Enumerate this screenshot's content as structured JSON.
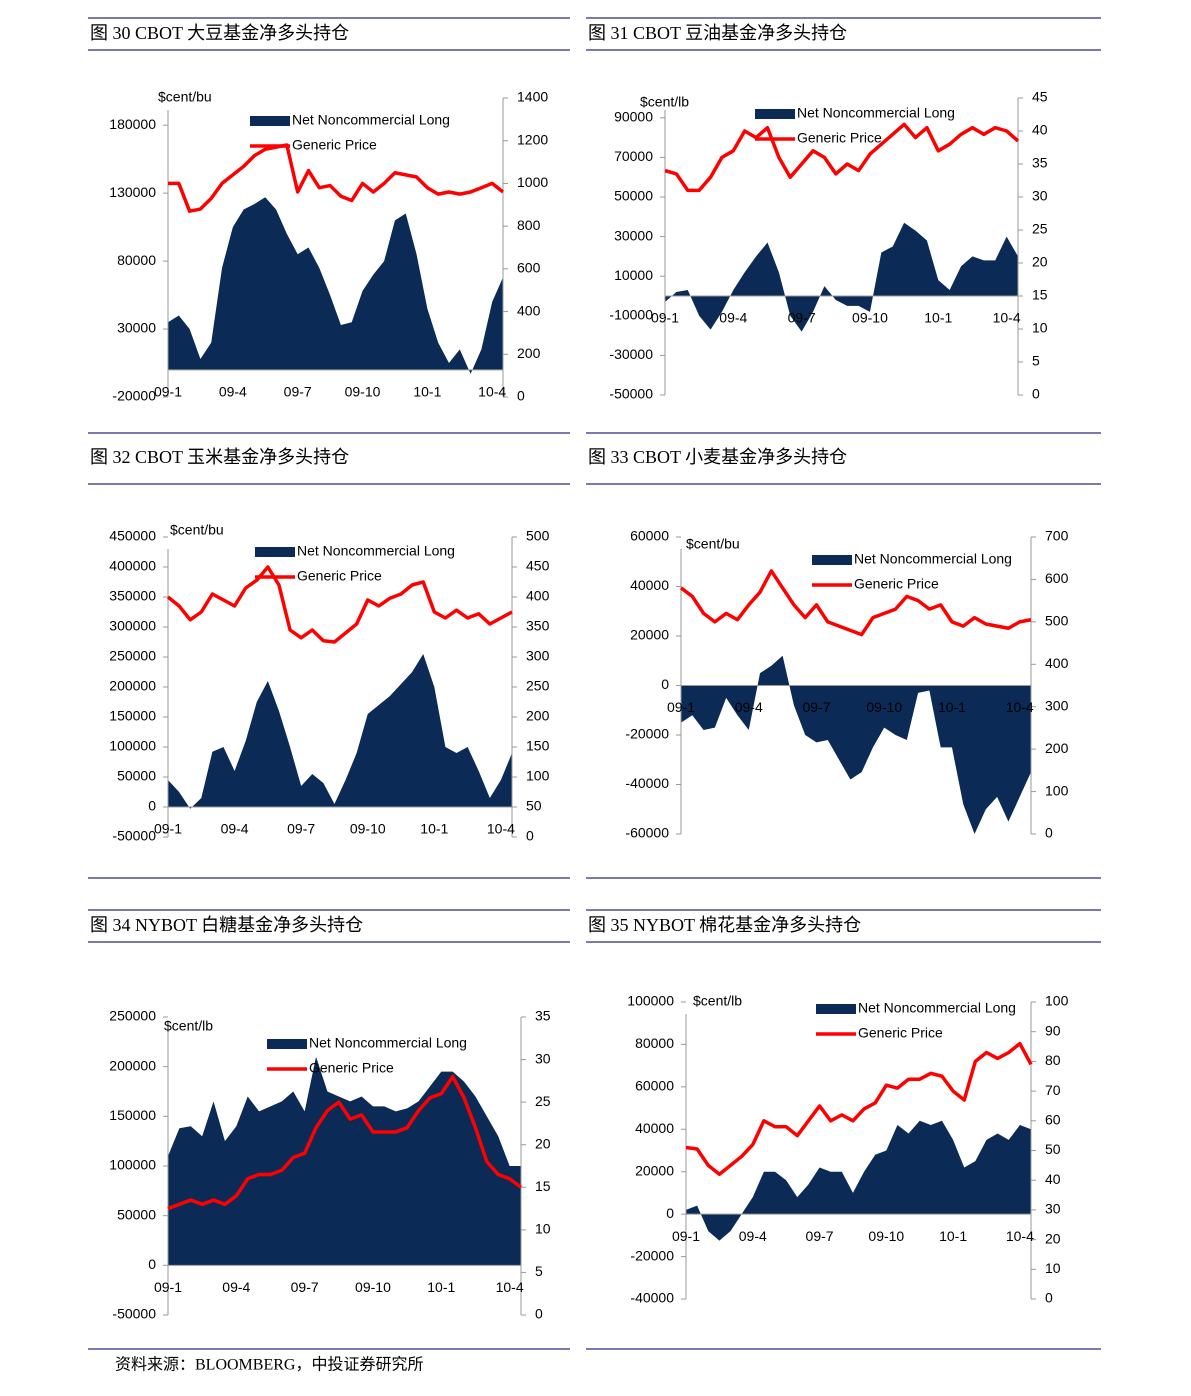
{
  "source": "资料来源：BLOOMBERG，中投证券研究所",
  "chart_data": [
    {
      "type": "combo",
      "title": "图 30 CBOT 大豆基金净多头持仓",
      "ylabel": "$cent/bu",
      "categories": [
        "09-1",
        null,
        null,
        null,
        null,
        null,
        "09-4",
        null,
        null,
        null,
        null,
        null,
        "09-7",
        null,
        null,
        null,
        null,
        null,
        "09-10",
        null,
        null,
        null,
        null,
        null,
        "10-1",
        null,
        null,
        null,
        null,
        null,
        "10-4",
        null
      ],
      "ylim": [
        -20000,
        200000
      ],
      "yticks": [
        -20000,
        30000,
        80000,
        130000,
        180000
      ],
      "y2lim": [
        0,
        1400
      ],
      "y2ticks": [
        0,
        200,
        400,
        600,
        800,
        1000,
        1200,
        1400
      ],
      "series": [
        {
          "name": "Net Noncommercial Long",
          "type": "area",
          "color": "#0b2a55",
          "values": [
            35000,
            40000,
            30000,
            8000,
            20000,
            75000,
            105000,
            118000,
            122000,
            127000,
            118000,
            100000,
            85000,
            90000,
            75000,
            55000,
            33000,
            35000,
            58000,
            70000,
            80000,
            110000,
            115000,
            85000,
            45000,
            20000,
            5000,
            15000,
            -3000,
            15000,
            50000,
            68000
          ]
        },
        {
          "name": "Generic Price",
          "type": "line",
          "axis": "y2",
          "color": "#ff0000",
          "values": [
            1000,
            1000,
            870,
            880,
            930,
            1000,
            1040,
            1080,
            1130,
            1160,
            1170,
            1180,
            960,
            1060,
            980,
            990,
            940,
            920,
            1000,
            960,
            1000,
            1050,
            1040,
            1030,
            980,
            950,
            960,
            950,
            960,
            980,
            1000,
            960
          ]
        }
      ]
    },
    {
      "type": "combo",
      "title": "图 31 CBOT 豆油基金净多头持仓",
      "ylabel": "$cent/lb",
      "categories": [
        "09-1",
        null,
        null,
        null,
        null,
        null,
        "09-4",
        null,
        null,
        null,
        null,
        null,
        "09-7",
        null,
        null,
        null,
        null,
        null,
        "09-10",
        null,
        null,
        null,
        null,
        null,
        "10-1",
        null,
        null,
        null,
        null,
        null,
        "10-4",
        null
      ],
      "ylim": [
        -50000,
        100000
      ],
      "yticks": [
        -50000,
        -30000,
        -10000,
        10000,
        30000,
        50000,
        70000,
        90000
      ],
      "y2lim": [
        0,
        45
      ],
      "y2ticks": [
        0,
        5,
        10,
        15,
        20,
        25,
        30,
        35,
        40,
        45
      ],
      "series": [
        {
          "name": "Net Noncommercial Long",
          "type": "area",
          "color": "#0b2a55",
          "values": [
            -3000,
            2000,
            3000,
            -10000,
            -17000,
            -8000,
            3000,
            12000,
            20000,
            27000,
            12000,
            -10000,
            -18000,
            -8000,
            5000,
            -2000,
            -5000,
            -5000,
            -8000,
            22000,
            25000,
            37000,
            33000,
            28000,
            8000,
            3000,
            15000,
            20000,
            18000,
            18000,
            30000,
            20000
          ]
        },
        {
          "name": "Generic Price",
          "type": "line",
          "axis": "y2",
          "color": "#ff0000",
          "values": [
            34,
            33.5,
            31,
            31,
            33,
            36,
            37,
            40,
            39,
            40.5,
            36,
            33,
            35,
            37,
            36,
            33.5,
            35,
            34,
            36.5,
            38,
            39.5,
            41,
            39,
            40.5,
            37,
            38,
            39.5,
            40.5,
            39.5,
            40.5,
            40,
            38.5
          ]
        }
      ]
    },
    {
      "type": "combo",
      "title": "图 32 CBOT 玉米基金净多头持仓",
      "ylabel": "$cent/bu",
      "categories": [
        "09-1",
        null,
        null,
        null,
        null,
        null,
        "09-4",
        null,
        null,
        null,
        null,
        null,
        "09-7",
        null,
        null,
        null,
        null,
        null,
        "09-10",
        null,
        null,
        null,
        null,
        null,
        "10-1",
        null,
        null,
        null,
        null,
        null,
        "10-4",
        null
      ],
      "ylim": [
        -50000,
        450000
      ],
      "yticks": [
        -50000,
        0,
        50000,
        100000,
        150000,
        200000,
        250000,
        300000,
        350000,
        400000,
        450000
      ],
      "y2lim": [
        0,
        500
      ],
      "y2ticks": [
        0,
        50,
        100,
        150,
        200,
        250,
        300,
        350,
        400,
        450,
        500
      ],
      "series": [
        {
          "name": "Net Noncommercial Long",
          "type": "area",
          "color": "#0b2a55",
          "values": [
            45000,
            25000,
            -3000,
            15000,
            92000,
            100000,
            60000,
            110000,
            175000,
            210000,
            160000,
            100000,
            35000,
            55000,
            40000,
            5000,
            45000,
            90000,
            155000,
            170000,
            185000,
            205000,
            225000,
            255000,
            200000,
            100000,
            90000,
            100000,
            60000,
            15000,
            45000,
            90000
          ]
        },
        {
          "name": "Generic Price",
          "type": "line",
          "axis": "y2",
          "color": "#ff0000",
          "values": [
            400,
            385,
            362,
            375,
            405,
            395,
            385,
            415,
            428,
            450,
            420,
            345,
            332,
            345,
            327,
            325,
            340,
            355,
            395,
            385,
            398,
            405,
            420,
            425,
            375,
            365,
            378,
            365,
            372,
            355,
            365,
            375
          ]
        }
      ]
    },
    {
      "type": "combo",
      "title": "图 33 CBOT 小麦基金净多头持仓",
      "ylabel": "$cent/bu",
      "categories": [
        "09-1",
        null,
        null,
        null,
        null,
        null,
        "09-4",
        null,
        null,
        null,
        null,
        null,
        "09-7",
        null,
        null,
        null,
        null,
        null,
        "09-10",
        null,
        null,
        null,
        null,
        null,
        "10-1",
        null,
        null,
        null,
        null,
        null,
        "10-4",
        null
      ],
      "ylim": [
        -60000,
        60000
      ],
      "yticks": [
        -60000,
        -40000,
        -20000,
        0,
        20000,
        40000,
        60000
      ],
      "y2lim": [
        0,
        700
      ],
      "y2ticks": [
        0,
        100,
        200,
        300,
        400,
        500,
        600,
        700
      ],
      "series": [
        {
          "name": "Net Noncommercial Long",
          "type": "area",
          "color": "#0b2a55",
          "values": [
            -15000,
            -12000,
            -18000,
            -17000,
            -5000,
            -12000,
            -18000,
            5000,
            8000,
            12000,
            -8000,
            -20000,
            -23000,
            -22000,
            -30000,
            -38000,
            -35000,
            -25000,
            -17000,
            -20000,
            -22000,
            -3000,
            -2000,
            -25000,
            -25000,
            -48000,
            -60000,
            -50000,
            -45000,
            -55000,
            -45000,
            -35000
          ]
        },
        {
          "name": "Generic Price",
          "type": "line",
          "axis": "y2",
          "color": "#ff0000",
          "values": [
            580,
            560,
            520,
            500,
            520,
            505,
            540,
            570,
            620,
            580,
            540,
            510,
            540,
            500,
            490,
            480,
            470,
            510,
            520,
            530,
            560,
            550,
            530,
            540,
            500,
            490,
            510,
            495,
            490,
            485,
            500,
            505
          ]
        }
      ]
    },
    {
      "type": "combo",
      "title": "图 34 NYBOT 白糖基金净多头持仓",
      "ylabel": "$cent/lb",
      "categories": [
        "09-1",
        null,
        null,
        null,
        null,
        null,
        "09-4",
        null,
        null,
        null,
        null,
        null,
        "09-7",
        null,
        null,
        null,
        null,
        null,
        "09-10",
        null,
        null,
        null,
        null,
        null,
        "10-1",
        null,
        null,
        null,
        null,
        null,
        "10-4",
        null
      ],
      "ylim": [
        -50000,
        250000
      ],
      "yticks": [
        -50000,
        0,
        50000,
        100000,
        150000,
        200000,
        250000
      ],
      "y2lim": [
        0,
        35
      ],
      "y2ticks": [
        0,
        5,
        10,
        15,
        20,
        25,
        30,
        35
      ],
      "series": [
        {
          "name": "Net Noncommercial Long",
          "type": "area",
          "color": "#0b2a55",
          "values": [
            110000,
            138000,
            140000,
            130000,
            165000,
            125000,
            140000,
            170000,
            155000,
            160000,
            165000,
            175000,
            155000,
            210000,
            175000,
            170000,
            165000,
            170000,
            160000,
            160000,
            155000,
            158000,
            165000,
            180000,
            195000,
            195000,
            185000,
            170000,
            150000,
            130000,
            100000,
            100000
          ]
        },
        {
          "name": "Generic Price",
          "type": "line",
          "axis": "y2",
          "color": "#ff0000",
          "values": [
            12.5,
            13,
            13.5,
            13,
            13.5,
            13,
            14,
            16,
            16.5,
            16.5,
            17,
            18.5,
            19,
            22,
            24,
            25,
            23,
            23.5,
            21.5,
            21.5,
            21.5,
            22,
            24,
            25.5,
            26,
            28,
            25.5,
            22,
            18,
            16.5,
            16,
            15
          ]
        }
      ]
    },
    {
      "type": "combo",
      "title": "图 35 NYBOT 棉花基金净多头持仓",
      "ylabel": "$cent/lb",
      "categories": [
        "09-1",
        null,
        null,
        null,
        null,
        null,
        "09-4",
        null,
        null,
        null,
        null,
        null,
        "09-7",
        null,
        null,
        null,
        null,
        null,
        "09-10",
        null,
        null,
        null,
        null,
        null,
        "10-1",
        null,
        null,
        null,
        null,
        null,
        "10-4",
        null
      ],
      "ylim": [
        -40000,
        100000
      ],
      "yticks": [
        -40000,
        -20000,
        0,
        20000,
        40000,
        60000,
        80000,
        100000
      ],
      "y2lim": [
        0,
        100
      ],
      "y2ticks": [
        0,
        10,
        20,
        30,
        40,
        50,
        60,
        70,
        80,
        90,
        100
      ],
      "series": [
        {
          "name": "Net Noncommercial Long",
          "type": "area",
          "color": "#0b2a55",
          "values": [
            2000,
            4000,
            -8000,
            -12500,
            -8000,
            0,
            8000,
            20000,
            20000,
            16000,
            8000,
            14000,
            22000,
            20000,
            20000,
            10000,
            20000,
            28000,
            30000,
            42000,
            38000,
            44000,
            42000,
            44000,
            35000,
            22000,
            25000,
            35000,
            38000,
            35000,
            42000,
            40000
          ]
        },
        {
          "name": "Generic Price",
          "type": "line",
          "axis": "y2",
          "color": "#ff0000",
          "values": [
            51,
            50.5,
            45,
            42,
            45,
            48,
            52,
            60,
            58,
            58,
            55,
            60,
            65,
            60,
            62,
            60,
            64,
            66,
            72,
            71,
            74,
            74,
            76,
            75,
            70,
            67,
            80,
            83,
            81,
            83,
            86,
            79
          ]
        }
      ]
    }
  ]
}
